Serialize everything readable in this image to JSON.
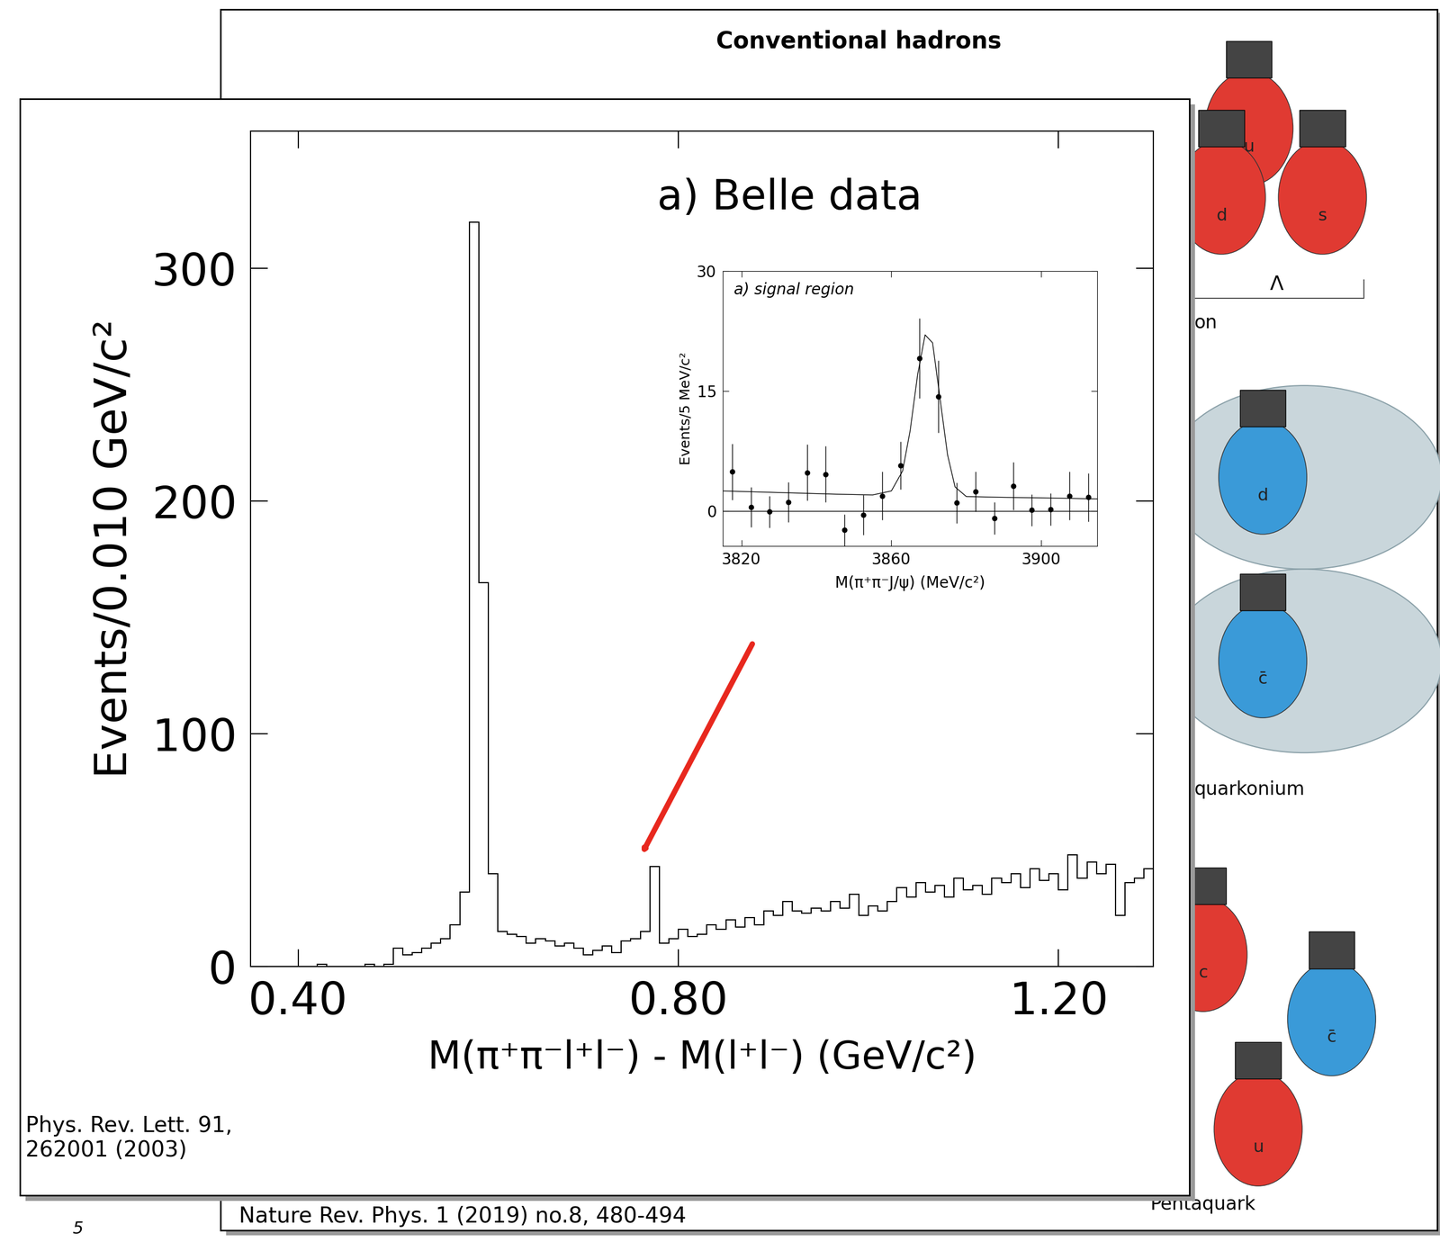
{
  "chart_data": [
    {
      "type": "histogram",
      "title": "a) Belle data",
      "x_label": "M(π⁺π⁻l⁺l⁻) - M(l⁺l⁻) (GeV/c²)",
      "y_label": "Events/0.010 GeV/c²",
      "color": "#000000",
      "bins": [
        0.35,
        0.36,
        0.37,
        0.38,
        0.39,
        0.4,
        0.41,
        0.42,
        0.43,
        0.44,
        0.45,
        0.46,
        0.47,
        0.48,
        0.49,
        0.5,
        0.51,
        0.52,
        0.53,
        0.54,
        0.55,
        0.56,
        0.57,
        0.58,
        0.59,
        0.6,
        0.61,
        0.62,
        0.63,
        0.64,
        0.65,
        0.66,
        0.67,
        0.68,
        0.69,
        0.7,
        0.71,
        0.72,
        0.73,
        0.74,
        0.75,
        0.76,
        0.77,
        0.78,
        0.79,
        0.8,
        0.81,
        0.82,
        0.83,
        0.84,
        0.85,
        0.86,
        0.87,
        0.88,
        0.89,
        0.9,
        0.91,
        0.92,
        0.93,
        0.94,
        0.95,
        0.96,
        0.97,
        0.98,
        0.99,
        1.0,
        1.01,
        1.02,
        1.03,
        1.04,
        1.05,
        1.06,
        1.07,
        1.08,
        1.09,
        1.1,
        1.11,
        1.12,
        1.13,
        1.14,
        1.15,
        1.16,
        1.17,
        1.18,
        1.19,
        1.2,
        1.21,
        1.22,
        1.23,
        1.24,
        1.25,
        1.26,
        1.27,
        1.28,
        1.29,
        1.3
      ],
      "values": [
        0,
        0,
        0,
        0,
        0,
        0,
        0,
        1,
        0,
        0,
        0,
        0,
        1,
        0,
        1,
        8,
        5,
        6,
        8,
        10,
        12,
        18,
        32,
        320,
        165,
        40,
        15,
        14,
        13,
        10,
        12,
        11,
        9,
        10,
        8,
        5,
        7,
        9,
        6,
        11,
        12,
        15,
        43,
        10,
        12,
        16,
        13,
        14,
        18,
        16,
        20,
        17,
        21,
        18,
        24,
        22,
        28,
        24,
        23,
        25,
        24,
        28,
        25,
        31,
        22,
        26,
        24,
        28,
        34,
        30,
        36,
        32,
        35,
        30,
        38,
        33,
        35,
        31,
        38,
        36,
        40,
        34,
        42,
        37,
        40,
        33,
        48,
        38,
        45,
        40,
        44,
        22,
        36,
        38,
        42
      ],
      "xlim": [
        0.35,
        1.3
      ],
      "ylim": [
        0,
        359
      ],
      "xticks": [
        {
          "value": 0.4,
          "label": "0.40"
        },
        {
          "value": 0.8,
          "label": "0.80"
        },
        {
          "value": 1.2,
          "label": "1.20"
        }
      ],
      "yticks": [
        0,
        100,
        200,
        300
      ],
      "annotations": [
        "Phys. Rev. Lett. 91,\n262001 (2003)"
      ]
    },
    {
      "type": "scatter",
      "title": "a) signal region",
      "x_label": "M(π⁺π⁻J/ψ) (MeV/c²)",
      "y_label": "Events/5 MeV/c²",
      "xlim": [
        3815,
        3915
      ],
      "ylim": [
        -4.4,
        30
      ],
      "xticks": [
        3820,
        3860,
        3900
      ],
      "yticks": [
        0,
        15,
        30
      ],
      "series": [
        {
          "type": "scatter",
          "marker": "o",
          "color": "#000000",
          "x": [
            3817.5,
            3822.5,
            3827.5,
            3832.5,
            3837.5,
            3842.5,
            3847.5,
            3852.5,
            3857.5,
            3862.5,
            3867.5,
            3872.5,
            3877.5,
            3882.5,
            3887.5,
            3892.5,
            3897.5,
            3902.5,
            3907.5,
            3912.5
          ],
          "values": [
            4.9,
            0.5,
            -0.1,
            1.1,
            4.8,
            4.6,
            -2.4,
            -0.5,
            1.9,
            5.7,
            19.1,
            14.3,
            1.0,
            2.4,
            -0.9,
            3.1,
            0.1,
            0.2,
            1.9,
            1.7
          ],
          "errors": [
            3.5,
            2.5,
            2,
            2.5,
            3.5,
            3.5,
            2,
            2.5,
            3,
            3,
            5,
            4.5,
            2.5,
            2.5,
            2,
            3,
            2,
            2,
            3,
            3
          ]
        },
        {
          "type": "line",
          "line_style": "solid",
          "color": "#000000",
          "x": [
            3815,
            3830,
            3845,
            3855,
            3860,
            3863,
            3865,
            3867,
            3869,
            3871,
            3873,
            3875,
            3877,
            3880,
            3890,
            3905,
            3915
          ],
          "values": [
            2.5,
            2.3,
            2.1,
            2.0,
            2.5,
            5,
            10,
            17,
            22,
            21,
            14,
            7,
            3,
            1.8,
            1.7,
            1.6,
            1.5
          ]
        },
        {
          "type": "line",
          "line_style": "solid",
          "color": "#000000",
          "x": [
            3815,
            3915
          ],
          "values": [
            0,
            0
          ]
        }
      ]
    }
  ],
  "background": {
    "title": "Conventional hadrons",
    "labels": [
      "Λ",
      "on",
      "quarkonium",
      "Pentaquark"
    ],
    "quark_labels": [
      "u",
      "d",
      "s",
      "d",
      "c̄",
      "c",
      "c̄",
      "u"
    ],
    "citation": "Nature Rev. Phys. 1 (2019) no.8, 480-494",
    "page_number": 5
  },
  "arrow_color": "#e8281e"
}
